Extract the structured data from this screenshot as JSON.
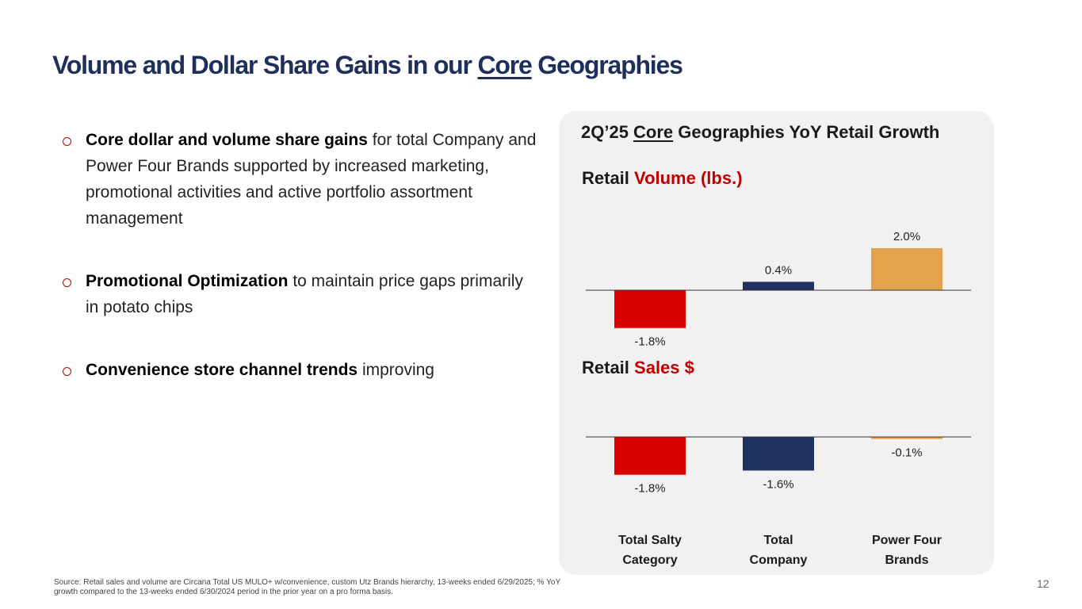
{
  "title": {
    "pre": "Volume and Dollar Share Gains in our ",
    "underlined": "Core",
    "post": " Geographies"
  },
  "bullets": [
    {
      "bold": "Core dollar and volume share gains",
      "text": " for total Company and Power Four Brands supported by increased marketing,  promotional activities and active portfolio assortment management"
    },
    {
      "bold": "Promotional Optimization",
      "text": " to maintain price gaps primarily in potato chips"
    },
    {
      "bold": "Convenience store channel trends",
      "text": " improving"
    }
  ],
  "panel": {
    "title_pre": "2Q’25 ",
    "title_underlined": "Core",
    "title_post": " Geographies YoY Retail Growth"
  },
  "chart_data": [
    {
      "type": "bar",
      "title_black": "Retail ",
      "title_red": "Volume (lbs.)",
      "categories": [
        "Total Salty Category",
        "Total Company",
        "Power Four Brands"
      ],
      "values": [
        -1.8,
        0.4,
        2.0
      ],
      "labels": [
        "-1.8%",
        "0.4%",
        "2.0%"
      ],
      "colors": [
        "#d90000",
        "#1f3260",
        "#e4a24d"
      ]
    },
    {
      "type": "bar",
      "title_black": "Retail ",
      "title_red": "Sales $",
      "categories": [
        "Total Salty Category",
        "Total Company",
        "Power Four Brands"
      ],
      "values": [
        -1.8,
        -1.6,
        -0.1
      ],
      "labels": [
        "-1.8%",
        "-1.6%",
        "-0.1%"
      ],
      "colors": [
        "#d90000",
        "#1f3260",
        "#e4a24d"
      ]
    }
  ],
  "category_labels": [
    [
      "Total Salty",
      "Category"
    ],
    [
      "Total",
      "Company"
    ],
    [
      "Power Four",
      "Brands"
    ]
  ],
  "footer": {
    "source": "Source: Retail sales and volume are Circana Total US MULO+ w/convenience, custom Utz Brands hierarchy, 13-weeks ended 6/29/2025; % YoY growth compared to the 13-weeks ended 6/30/2024 period in the prior year on a pro forma basis.",
    "page": "12"
  }
}
